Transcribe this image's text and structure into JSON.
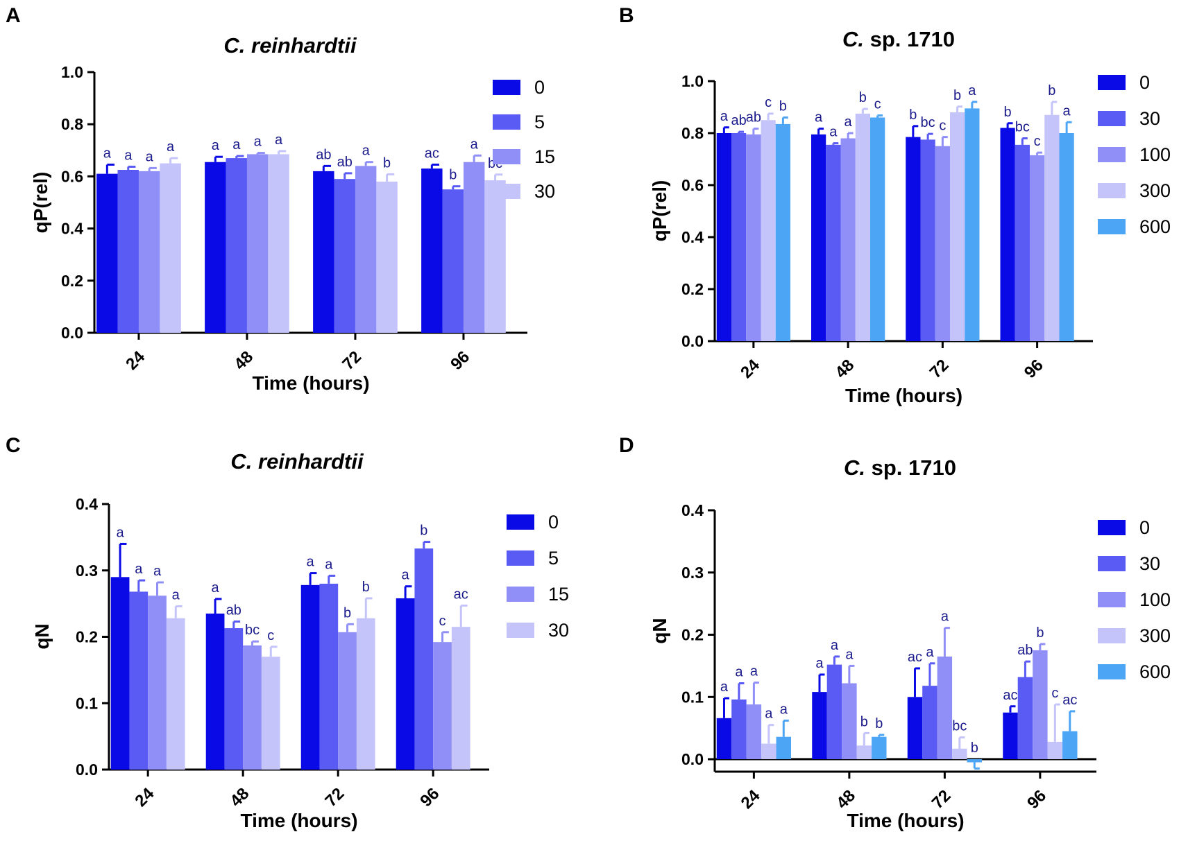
{
  "figure": {
    "letters": [
      "A",
      "B",
      "C",
      "D"
    ]
  },
  "chart_data": [
    {
      "panel": "A",
      "type": "bar",
      "title_species": "C. reinhardtii",
      "title_rest": "",
      "ylabel": "qP(rel)",
      "xlabel": "Time (hours)",
      "ylim": [
        0,
        1.0
      ],
      "yticks": [
        "0.0",
        "0.2",
        "0.4",
        "0.6",
        "0.8",
        "1.0"
      ],
      "categories": [
        "24",
        "48",
        "72",
        "96"
      ],
      "series": [
        {
          "name": "0",
          "color": "#0a0ae6",
          "values": [
            0.61,
            0.655,
            0.62,
            0.63
          ],
          "errors": [
            0.035,
            0.02,
            0.02,
            0.015
          ],
          "letters": [
            "a",
            "a",
            "ab",
            "ac"
          ]
        },
        {
          "name": "5",
          "color": "#5a5af5",
          "values": [
            0.625,
            0.67,
            0.59,
            0.55
          ],
          "errors": [
            0.012,
            0.008,
            0.022,
            0.012
          ],
          "letters": [
            "a",
            "a",
            "ab",
            "b"
          ]
        },
        {
          "name": "15",
          "color": "#8f8ff7",
          "values": [
            0.62,
            0.685,
            0.64,
            0.655
          ],
          "errors": [
            0.012,
            0.005,
            0.015,
            0.025
          ],
          "letters": [
            "a",
            "a",
            "a",
            "a"
          ]
        },
        {
          "name": "30",
          "color": "#c4c4fa",
          "values": [
            0.65,
            0.685,
            0.58,
            0.585
          ],
          "errors": [
            0.02,
            0.012,
            0.028,
            0.022
          ],
          "letters": [
            "a",
            "a",
            "b",
            "bc"
          ]
        }
      ]
    },
    {
      "panel": "B",
      "type": "bar",
      "title_species": "C.",
      "title_rest": " sp. 1710",
      "ylabel": "qP(rel)",
      "xlabel": "Time (hours)",
      "ylim": [
        0,
        1.0
      ],
      "yticks": [
        "0.0",
        "0.2",
        "0.4",
        "0.6",
        "0.8",
        "1.0"
      ],
      "categories": [
        "24",
        "48",
        "72",
        "96"
      ],
      "series": [
        {
          "name": "0",
          "color": "#0a0ae6",
          "values": [
            0.8,
            0.795,
            0.785,
            0.82
          ],
          "errors": [
            0.022,
            0.022,
            0.042,
            0.018
          ],
          "letters": [
            "a",
            "a",
            "b",
            "b"
          ]
        },
        {
          "name": "30",
          "color": "#5a5af5",
          "values": [
            0.8,
            0.755,
            0.775,
            0.755
          ],
          "errors": [
            0.005,
            0.006,
            0.022,
            0.025
          ],
          "letters": [
            "ab",
            "a",
            "bc",
            "bc"
          ]
        },
        {
          "name": "100",
          "color": "#8f8ff7",
          "values": [
            0.795,
            0.78,
            0.75,
            0.715
          ],
          "errors": [
            0.022,
            0.02,
            0.035,
            0.01
          ],
          "letters": [
            "ab",
            "a",
            "c",
            "c"
          ]
        },
        {
          "name": "300",
          "color": "#c4c4fa",
          "values": [
            0.85,
            0.875,
            0.88,
            0.87
          ],
          "errors": [
            0.025,
            0.018,
            0.022,
            0.05
          ],
          "letters": [
            "c",
            "b",
            "b",
            "b"
          ]
        },
        {
          "name": "600",
          "color": "#4da6f5",
          "values": [
            0.835,
            0.86,
            0.895,
            0.8
          ],
          "errors": [
            0.025,
            0.008,
            0.025,
            0.042
          ],
          "letters": [
            "b",
            "c",
            "a",
            "a"
          ]
        }
      ]
    },
    {
      "panel": "C",
      "type": "bar",
      "title_species": "C. reinhardtii",
      "title_rest": "",
      "ylabel": "qN",
      "xlabel": "Time (hours)",
      "ylim": [
        0,
        0.4
      ],
      "yticks": [
        "0.0",
        "0.1",
        "0.2",
        "0.3",
        "0.4"
      ],
      "categories": [
        "24",
        "48",
        "72",
        "96"
      ],
      "series": [
        {
          "name": "0",
          "color": "#0a0ae6",
          "values": [
            0.29,
            0.235,
            0.278,
            0.258
          ],
          "errors": [
            0.05,
            0.022,
            0.018,
            0.018
          ],
          "letters": [
            "a",
            "a",
            "a",
            "a"
          ]
        },
        {
          "name": "5",
          "color": "#5a5af5",
          "values": [
            0.268,
            0.213,
            0.28,
            0.333
          ],
          "errors": [
            0.017,
            0.01,
            0.012,
            0.01
          ],
          "letters": [
            "a",
            "ab",
            "a",
            "b"
          ]
        },
        {
          "name": "15",
          "color": "#8f8ff7",
          "values": [
            0.262,
            0.187,
            0.207,
            0.192
          ],
          "errors": [
            0.02,
            0.006,
            0.012,
            0.015
          ],
          "letters": [
            "a",
            "bc",
            "b",
            "c"
          ]
        },
        {
          "name": "30",
          "color": "#c4c4fa",
          "values": [
            0.228,
            0.17,
            0.228,
            0.215
          ],
          "errors": [
            0.018,
            0.015,
            0.03,
            0.032
          ],
          "letters": [
            "a",
            "c",
            "b",
            "ac"
          ]
        }
      ]
    },
    {
      "panel": "D",
      "type": "bar",
      "title_species": "C.",
      "title_rest": " sp. 1710",
      "ylabel": "qN",
      "xlabel": "Time (hours)",
      "ylim": [
        -0.02,
        0.4
      ],
      "yticks": [
        "0.0",
        "0.1",
        "0.2",
        "0.3",
        "0.4"
      ],
      "categories": [
        "24",
        "48",
        "72",
        "96"
      ],
      "series": [
        {
          "name": "0",
          "color": "#0a0ae6",
          "values": [
            0.066,
            0.108,
            0.1,
            0.075
          ],
          "errors": [
            0.032,
            0.028,
            0.046,
            0.01
          ],
          "letters": [
            "a",
            "a",
            "ac",
            "ac"
          ]
        },
        {
          "name": "30",
          "color": "#5a5af5",
          "values": [
            0.096,
            0.152,
            0.118,
            0.132
          ],
          "errors": [
            0.026,
            0.013,
            0.036,
            0.025
          ],
          "letters": [
            "a",
            "a",
            "a",
            "ab"
          ]
        },
        {
          "name": "100",
          "color": "#8f8ff7",
          "values": [
            0.088,
            0.122,
            0.165,
            0.175
          ],
          "errors": [
            0.035,
            0.028,
            0.046,
            0.01
          ],
          "letters": [
            "a",
            "a",
            "a",
            "b"
          ]
        },
        {
          "name": "300",
          "color": "#c4c4fa",
          "values": [
            0.025,
            0.022,
            0.017,
            0.028
          ],
          "errors": [
            0.03,
            0.02,
            0.018,
            0.06
          ],
          "letters": [
            "a",
            "b",
            "bc",
            "c"
          ]
        },
        {
          "name": "600",
          "color": "#4da6f5",
          "values": [
            0.036,
            0.036,
            -0.005,
            0.045
          ],
          "errors": [
            0.026,
            0.003,
            0.01,
            0.032
          ],
          "letters": [
            "a",
            "b",
            "b",
            "ac"
          ]
        }
      ]
    }
  ]
}
